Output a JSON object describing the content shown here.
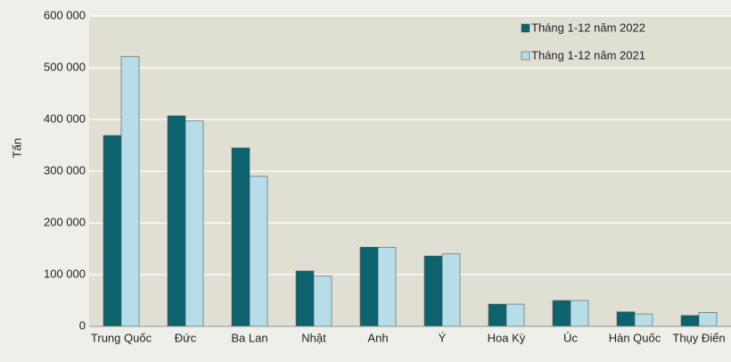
{
  "chart_data": {
    "type": "bar",
    "y_label": "Tấn",
    "categories": [
      "Trung Quốc",
      "Đức",
      "Ba Lan",
      "Nhật",
      "Anh",
      "Ý",
      "Hoa Kỳ",
      "Úc",
      "Hàn Quốc",
      "Thụy Điển"
    ],
    "series": [
      {
        "name": "Tháng 1-12 năm 2022",
        "color": "#0c636d",
        "values": [
          369000,
          407000,
          345000,
          107000,
          153000,
          136000,
          43000,
          50000,
          28000,
          21000
        ]
      },
      {
        "name": "Tháng 1-12 năm 2021",
        "color": "#b6dde8",
        "values": [
          522000,
          397000,
          290000,
          97000,
          153000,
          140000,
          43000,
          50000,
          24000,
          27000
        ]
      }
    ],
    "ylim": [
      0,
      600000
    ],
    "yticks": [
      {
        "value": 0,
        "label": "0"
      },
      {
        "value": 100000,
        "label": "100 000"
      },
      {
        "value": 200000,
        "label": "200 000"
      },
      {
        "value": 300000,
        "label": "300 000"
      },
      {
        "value": 400000,
        "label": "400 000"
      },
      {
        "value": 500000,
        "label": "500 000"
      },
      {
        "value": 600000,
        "label": "600 000"
      }
    ],
    "grid": true,
    "legend": "top-right"
  }
}
